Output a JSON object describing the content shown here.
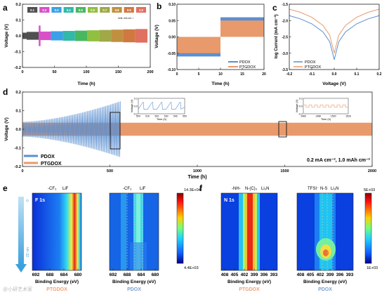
{
  "colors": {
    "pdox": "#5b8fd0",
    "ptgdox": "#e99a6c",
    "axis": "#222222"
  },
  "panels": {
    "a": "a",
    "b": "b",
    "c": "c",
    "d": "d",
    "e": "e",
    "f": "f"
  },
  "watermark": "@小研艺术家",
  "chart_data": [
    {
      "id": "a",
      "type": "line",
      "xlabel": "Time (h)",
      "ylabel": "Voltage (V)",
      "xlim": [
        0,
        210
      ],
      "ylim": [
        -0.2,
        0.2
      ],
      "xticks": [
        "0",
        "50",
        "100",
        "150",
        "200"
      ],
      "yticks": [
        "-0.2",
        "-0.1",
        "0.0",
        "0.1",
        "0.2"
      ],
      "rate_labels": [
        "0.1",
        "0.2",
        "0.3",
        "0.4",
        "0.5",
        "0.6",
        "0.7",
        "0.8",
        "0.9",
        "1.0"
      ],
      "rate_colors": [
        "#505050",
        "#d850c8",
        "#3aa0e8",
        "#30b8a8",
        "#48b860",
        "#90c040",
        "#a0a848",
        "#c09040",
        "#d07840",
        "#e07060"
      ],
      "units": "Unit: mA cm⁻²"
    },
    {
      "id": "b",
      "type": "line",
      "xlabel": "Time (h)",
      "ylabel": "Voltage (V)",
      "xlim": [
        0,
        20
      ],
      "ylim": [
        -0.1,
        0.1
      ],
      "xticks": [
        "0",
        "5",
        "10",
        "15",
        "20"
      ],
      "yticks": [
        "-0.10",
        "-0.05",
        "0.00",
        "0.05",
        "0.10"
      ],
      "series": [
        {
          "name": "PDOX",
          "segments": [
            {
              "x": [
                0,
                10
              ],
              "upper": 0.0,
              "lower": -0.06
            },
            {
              "x": [
                10,
                20
              ],
              "upper": 0.06,
              "lower": 0.0
            }
          ]
        },
        {
          "name": "PTGDOX",
          "segments": [
            {
              "x": [
                0,
                10
              ],
              "upper": 0.0,
              "lower": -0.05
            },
            {
              "x": [
                10,
                20
              ],
              "upper": 0.05,
              "lower": 0.0
            }
          ]
        }
      ]
    },
    {
      "id": "c",
      "type": "line",
      "xlabel": "Voltage (V)",
      "ylabel": "log Current (mA cm⁻²)",
      "xlim": [
        -0.2,
        0.2
      ],
      "ylim": [
        -3.5,
        -1.5
      ],
      "xticks": [
        "-0.2",
        "-0.1",
        "0.0",
        "0.1",
        "0.2"
      ],
      "yticks": [
        "-3.5",
        "-3.0",
        "-2.5",
        "-2.0",
        "-1.5"
      ],
      "series": [
        {
          "name": "PDOX",
          "x": [
            -0.2,
            -0.15,
            -0.1,
            -0.05,
            -0.02,
            0.0,
            0.02,
            0.05,
            0.1,
            0.15,
            0.2
          ],
          "y": [
            -1.85,
            -1.95,
            -2.1,
            -2.35,
            -2.65,
            -3.2,
            -2.65,
            -2.35,
            -2.1,
            -1.95,
            -1.85
          ]
        },
        {
          "name": "PTGDOX",
          "x": [
            -0.2,
            -0.15,
            -0.1,
            -0.05,
            -0.02,
            0.0,
            0.02,
            0.05,
            0.1,
            0.15,
            0.2
          ],
          "y": [
            -1.65,
            -1.75,
            -1.9,
            -2.15,
            -2.45,
            -3.0,
            -2.45,
            -2.15,
            -1.9,
            -1.75,
            -1.65
          ]
        }
      ]
    },
    {
      "id": "d",
      "type": "line",
      "xlabel": "Time (h)",
      "ylabel": "Voltage (V)",
      "xlim": [
        0,
        2000
      ],
      "ylim": [
        -0.2,
        0.2
      ],
      "xticks": [
        "0",
        "500",
        "1000",
        "1500",
        "2000"
      ],
      "yticks": [
        "-0.2",
        "-0.1",
        "0.0",
        "0.1",
        "0.2"
      ],
      "conditions": "0.2 mA cm⁻², 1.0 mAh cm⁻²",
      "series": [
        {
          "name": "PDOX",
          "x_end": 560,
          "amp_start": 0.04,
          "amp_end": 0.15
        },
        {
          "name": "PTGDOX",
          "x_end": 2000,
          "amp": 0.035
        }
      ],
      "inset1": {
        "xticks": [
          "500",
          "510",
          "520",
          "530",
          "540",
          "550"
        ],
        "yticks": [
          "0.2",
          "0.0",
          "-0.2"
        ],
        "xlabel": "Time (h)",
        "ylabel": "Voltage (V)"
      },
      "inset2": {
        "xticks": [
          "1460",
          "1480",
          "1500",
          "1520"
        ],
        "yticks": [
          "0.2",
          "0.0",
          "-0.2"
        ],
        "xlabel": "Time (h)",
        "ylabel": "Voltage (V)"
      }
    },
    {
      "id": "e",
      "type": "heatmap",
      "title": "F 1s",
      "xlabel": "Binding Energy (eV)",
      "xticks": [
        "692",
        "688",
        "684",
        "680"
      ],
      "peaks": [
        "-CF₃",
        "LiF"
      ],
      "captions": [
        "PTGDOX",
        "PDOX"
      ],
      "colorbar": {
        "max": "14.3E+04",
        "min": "4.4E+03"
      },
      "depth": {
        "top": "0",
        "bottom": "22 nm"
      }
    },
    {
      "id": "f",
      "type": "heatmap",
      "title": "N 1s",
      "xlabel": "Binding Energy (eV)",
      "xticks": [
        "408",
        "405",
        "402",
        "399",
        "396",
        "393"
      ],
      "peaks_left": [
        "-NH-",
        "N-(C)₃",
        "Li₃N"
      ],
      "peaks_right": [
        "TFSI⁻",
        "N-S",
        "Li₃N"
      ],
      "captions": [
        "PTGDOX",
        "PDOX"
      ],
      "colorbar": {
        "max": "5E+03",
        "min": "1E+03"
      }
    }
  ]
}
